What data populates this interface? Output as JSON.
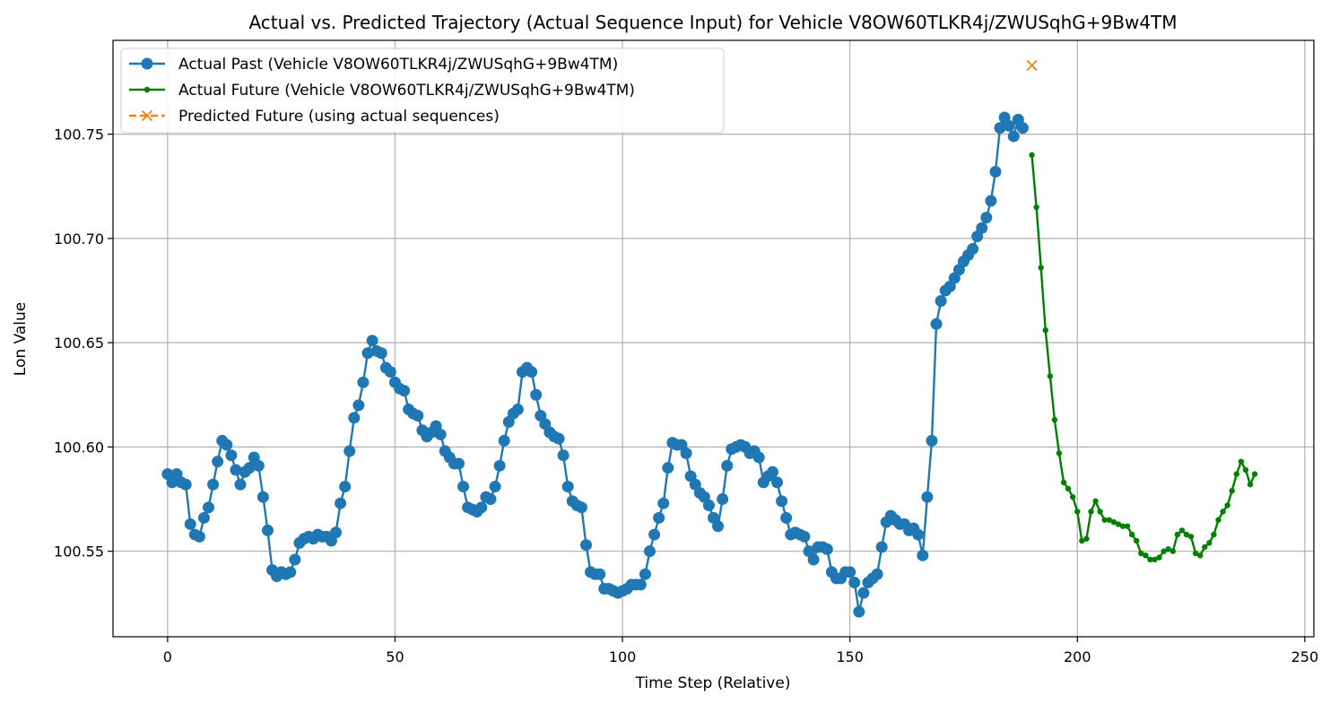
{
  "chart_data": {
    "type": "line",
    "title": "Actual vs. Predicted Trajectory (Actual Sequence Input) for Vehicle V8OW60TLKR4j/ZWUSqhG+9Bw4TM",
    "xlabel": "Time Step (Relative)",
    "ylabel": "Lon Value",
    "xlim": [
      -12,
      252
    ],
    "ylim": [
      100.509,
      100.795
    ],
    "xticks": [
      0,
      50,
      100,
      150,
      200,
      250
    ],
    "yticks": [
      100.55,
      100.6,
      100.65,
      100.7,
      100.75
    ],
    "ytick_labels": [
      "100.55",
      "100.60",
      "100.65",
      "100.70",
      "100.75"
    ],
    "grid": true,
    "legend_position": "top-left",
    "series": [
      {
        "name": "Actual Past (Vehicle V8OW60TLKR4j/ZWUSqhG+9Bw4TM)",
        "color": "#1f77b4",
        "marker": "circle",
        "linestyle": "solid",
        "x_start": 0,
        "values": [
          100.587,
          100.583,
          100.587,
          100.583,
          100.582,
          100.563,
          100.558,
          100.557,
          100.566,
          100.571,
          100.582,
          100.593,
          100.603,
          100.601,
          100.596,
          100.589,
          100.582,
          100.588,
          100.59,
          100.595,
          100.591,
          100.576,
          100.56,
          100.541,
          100.538,
          100.54,
          100.539,
          100.54,
          100.546,
          100.554,
          100.556,
          100.557,
          100.556,
          100.558,
          100.557,
          100.557,
          100.555,
          100.559,
          100.573,
          100.581,
          100.598,
          100.614,
          100.62,
          100.631,
          100.645,
          100.651,
          100.646,
          100.645,
          100.638,
          100.636,
          100.631,
          100.628,
          100.627,
          100.618,
          100.616,
          100.615,
          100.608,
          100.605,
          100.607,
          100.61,
          100.606,
          100.598,
          100.595,
          100.592,
          100.592,
          100.581,
          100.571,
          100.57,
          100.569,
          100.571,
          100.576,
          100.575,
          100.581,
          100.591,
          100.603,
          100.612,
          100.616,
          100.618,
          100.636,
          100.638,
          100.636,
          100.625,
          100.615,
          100.611,
          100.607,
          100.605,
          100.604,
          100.596,
          100.581,
          100.574,
          100.572,
          100.571,
          100.553,
          100.54,
          100.539,
          100.539,
          100.532,
          100.532,
          100.531,
          100.53,
          100.531,
          100.532,
          100.534,
          100.534,
          100.534,
          100.539,
          100.55,
          100.558,
          100.566,
          100.573,
          100.59,
          100.602,
          100.601,
          100.601,
          100.597,
          100.586,
          100.582,
          100.578,
          100.576,
          100.572,
          100.566,
          100.562,
          100.575,
          100.591,
          100.599,
          100.6,
          100.601,
          100.6,
          100.597,
          100.598,
          100.595,
          100.583,
          100.586,
          100.588,
          100.583,
          100.574,
          100.566,
          100.558,
          100.559,
          100.558,
          100.557,
          100.55,
          100.546,
          100.552,
          100.552,
          100.551,
          100.54,
          100.537,
          100.537,
          100.54,
          100.54,
          100.535,
          100.521,
          100.53,
          100.535,
          100.537,
          100.539,
          100.552,
          100.564,
          100.567,
          100.565,
          100.563,
          100.563,
          100.56,
          100.561,
          100.558,
          100.548,
          100.576,
          100.603,
          100.659,
          100.67,
          100.675,
          100.677,
          100.681,
          100.685,
          100.689,
          100.692,
          100.695,
          100.701,
          100.705,
          100.71,
          100.718,
          100.732,
          100.753,
          100.758,
          100.754,
          100.749,
          100.757,
          100.753
        ]
      },
      {
        "name": "Actual Future (Vehicle V8OW60TLKR4j/ZWUSqhG+9Bw4TM)",
        "color": "#008000",
        "marker": "dot",
        "linestyle": "solid",
        "x_start": 190,
        "values": [
          100.74,
          100.715,
          100.686,
          100.656,
          100.634,
          100.613,
          100.597,
          100.583,
          100.58,
          100.576,
          100.569,
          100.555,
          100.556,
          100.569,
          100.574,
          100.569,
          100.565,
          100.565,
          100.564,
          100.563,
          100.562,
          100.562,
          100.558,
          100.555,
          100.549,
          100.548,
          100.546,
          100.546,
          100.547,
          100.55,
          100.551,
          100.55,
          100.558,
          100.56,
          100.558,
          100.557,
          100.549,
          100.548,
          100.552,
          100.554,
          100.558,
          100.565,
          100.569,
          100.572,
          100.579,
          100.587,
          100.593,
          100.589,
          100.582,
          100.587
        ]
      },
      {
        "name": "Predicted Future (using actual sequences)",
        "color": "#ff7f0e",
        "marker": "x",
        "linestyle": "dashed",
        "x": [
          190
        ],
        "values": [
          100.783
        ]
      }
    ]
  }
}
